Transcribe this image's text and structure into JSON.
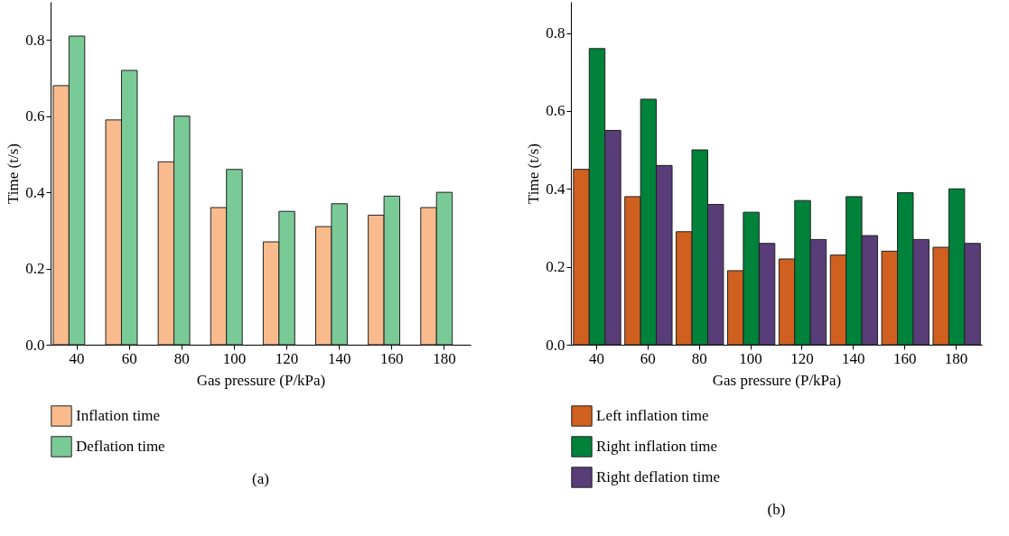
{
  "chart_data": [
    {
      "type": "bar",
      "xlabel": "Gas pressure (P/kPa)",
      "ylabel": "Time (t/s)",
      "categories": [
        "40",
        "60",
        "80",
        "100",
        "120",
        "140",
        "160",
        "180"
      ],
      "series": [
        {
          "name": "Inflation time",
          "color": "#f9bb8d",
          "values": [
            0.68,
            0.59,
            0.48,
            0.36,
            0.27,
            0.31,
            0.34,
            0.36
          ]
        },
        {
          "name": "Deflation time",
          "color": "#7aca97",
          "values": [
            0.81,
            0.72,
            0.6,
            0.46,
            0.35,
            0.37,
            0.39,
            0.4
          ]
        }
      ],
      "ylim": [
        0,
        0.9
      ],
      "yticks": [
        {
          "value": 0,
          "label": "0.0"
        },
        {
          "value": 0.2,
          "label": "0.2"
        },
        {
          "value": 0.4,
          "label": "0.4"
        },
        {
          "value": 0.6,
          "label": "0.6"
        },
        {
          "value": 0.8,
          "label": "0.8"
        }
      ],
      "legend": "bottom",
      "annotations": [
        "(a)"
      ]
    },
    {
      "type": "bar",
      "xlabel": "Gas pressure (P/kPa)",
      "ylabel": "Time (t/s)",
      "categories": [
        "40",
        "60",
        "80",
        "100",
        "120",
        "140",
        "160",
        "180"
      ],
      "series": [
        {
          "name": "Left inflation time",
          "color": "#d0601f",
          "values": [
            0.45,
            0.38,
            0.29,
            0.19,
            0.22,
            0.23,
            0.24,
            0.25
          ]
        },
        {
          "name": "Right inflation time",
          "color": "#00823b",
          "values": [
            0.76,
            0.63,
            0.5,
            0.34,
            0.37,
            0.38,
            0.39,
            0.4
          ]
        },
        {
          "name": "Right deflation time",
          "color": "#583d78",
          "values": [
            0.55,
            0.46,
            0.36,
            0.26,
            0.27,
            0.28,
            0.27,
            0.26
          ]
        }
      ],
      "ylim": [
        0,
        0.88
      ],
      "yticks": [
        {
          "value": 0,
          "label": "0.0"
        },
        {
          "value": 0.2,
          "label": "0.2"
        },
        {
          "value": 0.4,
          "label": "0.4"
        },
        {
          "value": 0.6,
          "label": "0.6"
        },
        {
          "value": 0.8,
          "label": "0.8"
        }
      ],
      "legend": "bottom",
      "annotations": [
        "(b)"
      ]
    }
  ]
}
